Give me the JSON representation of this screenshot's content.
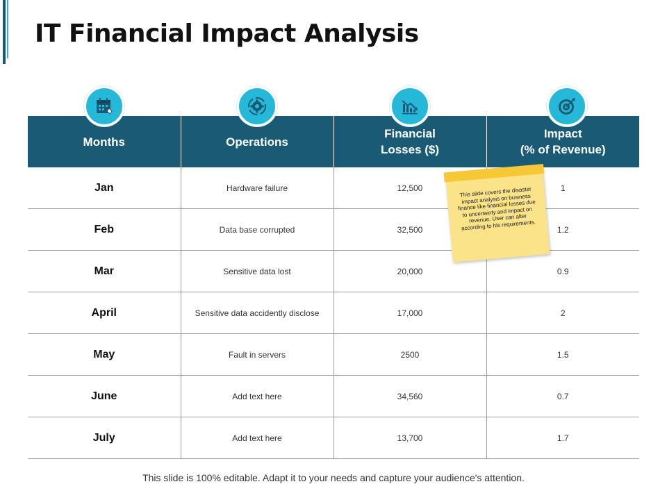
{
  "slide": {
    "title": "IT Financial Impact Analysis",
    "footer": "This slide is 100% editable. Adapt it to your needs and capture your audience's attention.",
    "sticky_note": "This slide covers the disaster impact analysis on business finance like financial losses due to uncertainty and impact on revenue. User can alter according to his requirements."
  },
  "icons": [
    "calendar-icon",
    "gear-icon",
    "chart-loss-icon",
    "target-icon"
  ],
  "colors": {
    "header": "#1a5a75",
    "icon": "#25b8d8",
    "sticky": "#fbe38a",
    "tape": "#f7c836"
  },
  "table": {
    "headers": {
      "months": "Months",
      "operations": "Operations",
      "losses_line1": "Financial",
      "losses_line2": "Losses ($)",
      "impact_line1": "Impact",
      "impact_line2": "(% of Revenue)"
    },
    "rows": [
      {
        "month": "Jan",
        "operation": "Hardware failure",
        "loss": "12,500",
        "impact": "1"
      },
      {
        "month": "Feb",
        "operation": "Data base corrupted",
        "loss": "32,500",
        "impact": "1.2"
      },
      {
        "month": "Mar",
        "operation": "Sensitive data lost",
        "loss": "20,000",
        "impact": "0.9"
      },
      {
        "month": "April",
        "operation": "Sensitive data accidently disclose",
        "loss": "17,000",
        "impact": "2"
      },
      {
        "month": "May",
        "operation": "Fault in servers",
        "loss": "2500",
        "impact": "1.5"
      },
      {
        "month": "June",
        "operation": "Add text here",
        "loss": "34,560",
        "impact": "0.7"
      },
      {
        "month": "July",
        "operation": "Add text here",
        "loss": "13,700",
        "impact": "1.7"
      }
    ]
  }
}
